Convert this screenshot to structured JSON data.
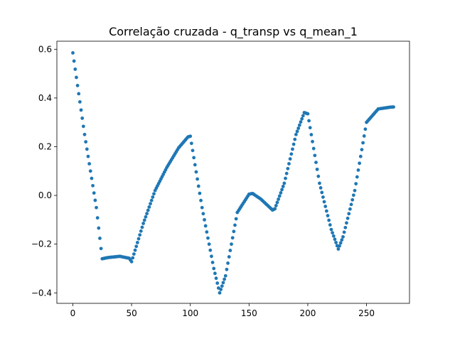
{
  "chart_data": {
    "type": "scatter",
    "title": "Correlação cruzada - q_transp vs q_mean_1",
    "xlabel": "",
    "ylabel": "",
    "xlim": [
      -13.6,
      286.6
    ],
    "ylim": [
      -0.443,
      0.633
    ],
    "xticks": [
      0,
      50,
      100,
      150,
      200,
      250
    ],
    "xtick_labels": [
      "0",
      "50",
      "100",
      "150",
      "200",
      "250"
    ],
    "yticks": [
      -0.4,
      -0.2,
      0.0,
      0.2,
      0.4,
      0.6
    ],
    "ytick_labels": [
      "−0.4",
      "−0.2",
      "0.0",
      "0.2",
      "0.4",
      "0.6"
    ],
    "grid": false,
    "marker_color": "#1f77b4",
    "anchors": {
      "x": [
        0,
        10,
        20,
        25,
        30,
        40,
        48,
        50,
        60,
        70,
        80,
        90,
        98,
        100,
        110,
        120,
        125,
        130,
        140,
        150,
        153,
        160,
        170,
        172,
        180,
        190,
        197,
        200,
        210,
        220,
        226,
        230,
        240,
        250,
        260,
        270,
        273
      ],
      "y": [
        0.585,
        0.25,
        -0.05,
        -0.26,
        -0.255,
        -0.25,
        -0.258,
        -0.272,
        -0.115,
        0.02,
        0.115,
        0.195,
        0.24,
        0.243,
        -0.05,
        -0.3,
        -0.4,
        -0.33,
        -0.07,
        0.005,
        0.008,
        -0.015,
        -0.06,
        -0.055,
        0.05,
        0.25,
        0.34,
        0.335,
        0.05,
        -0.14,
        -0.22,
        -0.17,
        0.02,
        0.3,
        0.355,
        0.362,
        0.363
      ]
    }
  }
}
